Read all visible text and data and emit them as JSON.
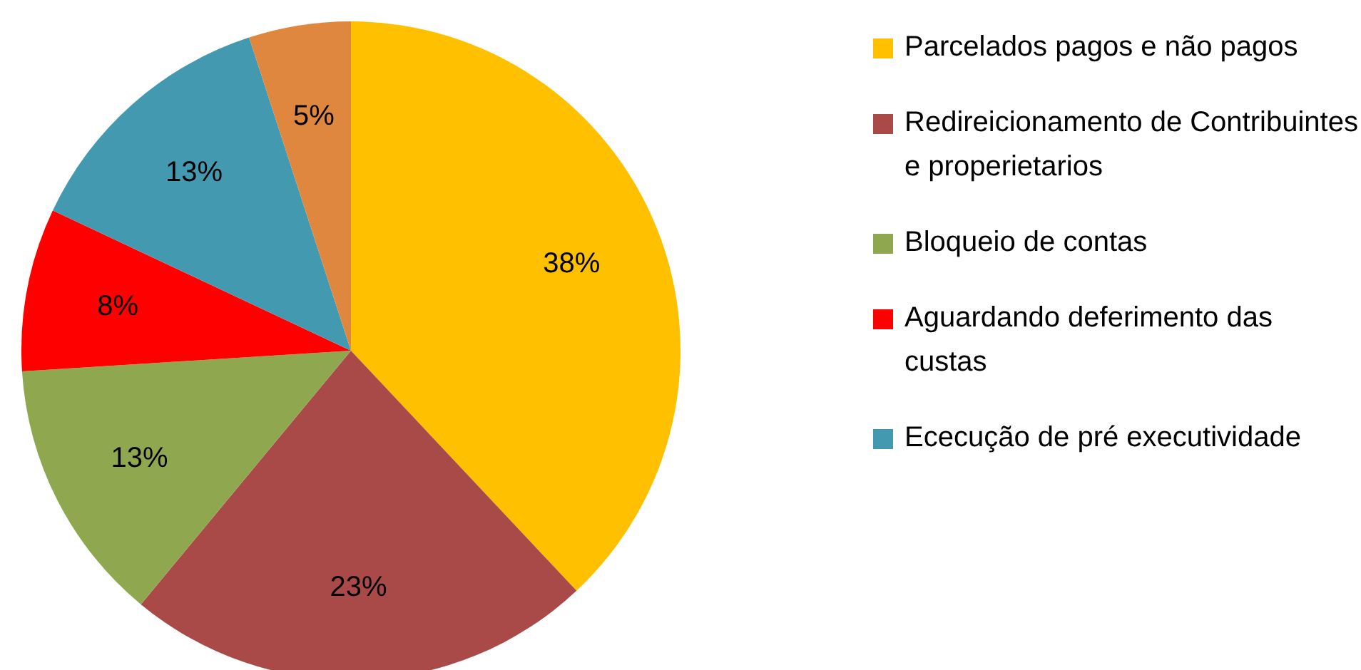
{
  "chart_data": {
    "type": "pie",
    "categories": [
      "Parcelados pagos e não pagos",
      "Redireicionamento de Contribuintes e properietarios",
      "Bloqueio de contas",
      "Aguardando deferimento das custas",
      "Ececução de pré executividade",
      null
    ],
    "values": [
      38,
      23,
      13,
      8,
      13,
      5
    ],
    "colors": [
      "#ffc000",
      "#a94a48",
      "#8fa84f",
      "#ff0000",
      "#4299b0",
      "#e0873f"
    ],
    "value_labels": [
      "38%",
      "23%",
      "13%",
      "8%",
      "13%",
      "5%"
    ],
    "legend": "right"
  }
}
